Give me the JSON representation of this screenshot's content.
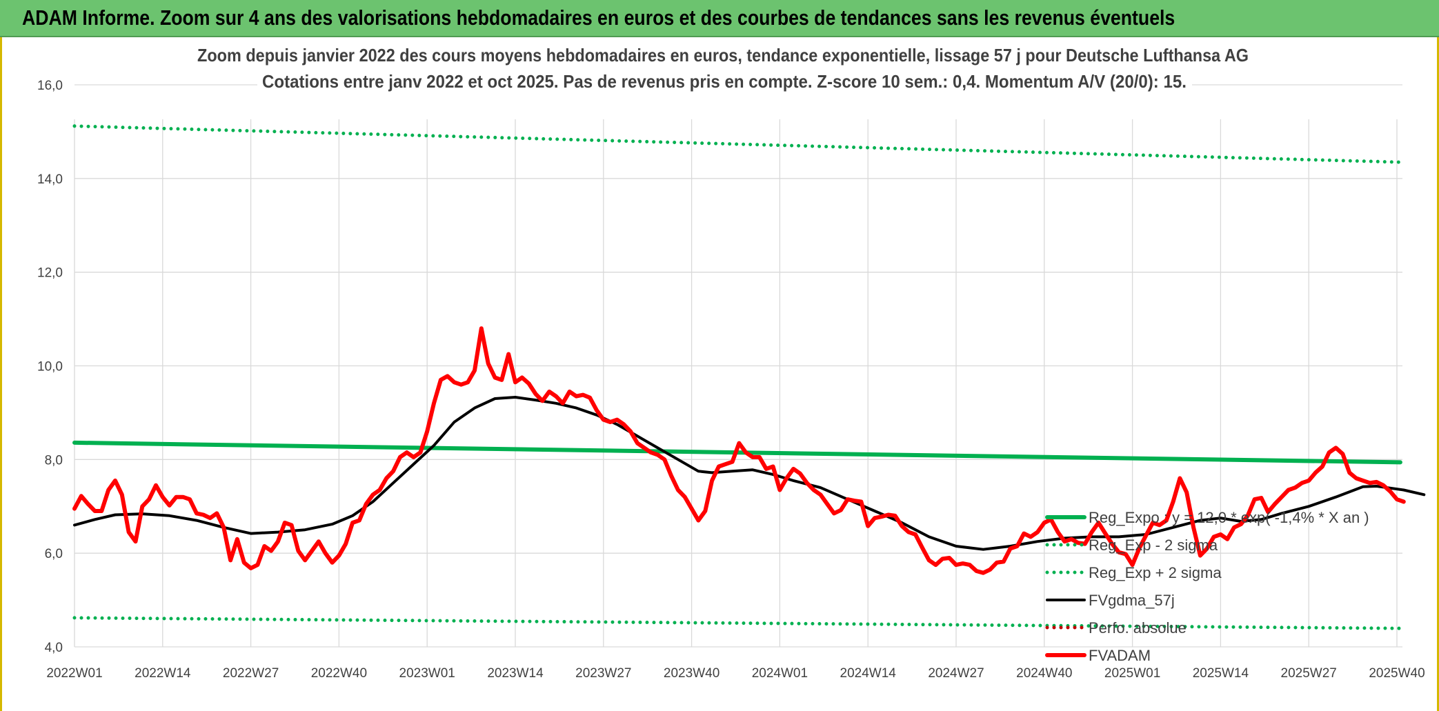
{
  "header": {
    "title": "ADAM Informe. Zoom sur 4 ans des valorisations hebdomadaires en euros et des courbes de tendances sans les revenus éventuels"
  },
  "colors": {
    "banner": "#6cc36f",
    "grid": "#d9d9d9",
    "axis_text": "#404040",
    "title_text": "#404040",
    "reg_expo": "#00b050",
    "sigma": "#00b050",
    "fvgdma": "#000000",
    "perfo": "#c00000",
    "fvadam": "#ff0000"
  },
  "chart_data": {
    "type": "line",
    "title": "Zoom depuis janvier 2022 des cours moyens hebdomadaires en euros, tendance exponentielle, lissage 57 j pour Deutsche Lufthansa AG",
    "subtitle": "Cotations entre janv 2022 et oct 2025. Pas de revenus pris en compte. Z-score 10 sem.: 0,4. Momentum A/V (20/0): 15.",
    "xlabel": "",
    "ylabel": "",
    "ylim": [
      4,
      16
    ],
    "yticks": [
      "4,0",
      "6,0",
      "8,0",
      "10,0",
      "12,0",
      "14,0",
      "16,0"
    ],
    "xlim": [
      0,
      195
    ],
    "xticks": [
      {
        "i": 0,
        "label": "2022W01"
      },
      {
        "i": 13,
        "label": "2022W14"
      },
      {
        "i": 26,
        "label": "2022W27"
      },
      {
        "i": 39,
        "label": "2022W40"
      },
      {
        "i": 52,
        "label": "2023W01"
      },
      {
        "i": 65,
        "label": "2023W14"
      },
      {
        "i": 78,
        "label": "2023W27"
      },
      {
        "i": 91,
        "label": "2023W40"
      },
      {
        "i": 104,
        "label": "2024W01"
      },
      {
        "i": 117,
        "label": "2024W14"
      },
      {
        "i": 130,
        "label": "2024W27"
      },
      {
        "i": 143,
        "label": "2024W40"
      },
      {
        "i": 156,
        "label": "2025W01"
      },
      {
        "i": 169,
        "label": "2025W14"
      },
      {
        "i": 182,
        "label": "2025W27"
      },
      {
        "i": 195,
        "label": "2025W40"
      }
    ],
    "grid": true,
    "legend_position": "bottom-right",
    "series": [
      {
        "name": "Reg_Expo : y = 12,0 * exp( -1,4% * X an )",
        "style": "solid-thick",
        "linear": [
          [
            0,
            8.36
          ],
          [
            200,
            7.93
          ]
        ]
      },
      {
        "name": "Reg_Exp - 2 sigma",
        "style": "dotted",
        "linear": [
          [
            0,
            4.62
          ],
          [
            200,
            4.39
          ]
        ]
      },
      {
        "name": "Reg_Exp + 2 sigma",
        "style": "dotted",
        "linear": [
          [
            0,
            15.12
          ],
          [
            200,
            14.33
          ]
        ]
      },
      {
        "name": "FVgdma_57j",
        "style": "solid",
        "points": [
          [
            0,
            6.6
          ],
          [
            3,
            6.72
          ],
          [
            6,
            6.82
          ],
          [
            10,
            6.84
          ],
          [
            14,
            6.8
          ],
          [
            18,
            6.7
          ],
          [
            22,
            6.55
          ],
          [
            26,
            6.42
          ],
          [
            30,
            6.45
          ],
          [
            34,
            6.5
          ],
          [
            38,
            6.62
          ],
          [
            41,
            6.8
          ],
          [
            44,
            7.1
          ],
          [
            47,
            7.5
          ],
          [
            50,
            7.9
          ],
          [
            53,
            8.3
          ],
          [
            56,
            8.8
          ],
          [
            59,
            9.1
          ],
          [
            62,
            9.3
          ],
          [
            65,
            9.33
          ],
          [
            68,
            9.27
          ],
          [
            71,
            9.2
          ],
          [
            74,
            9.1
          ],
          [
            77,
            8.95
          ],
          [
            80,
            8.75
          ],
          [
            83,
            8.5
          ],
          [
            86,
            8.25
          ],
          [
            89,
            8.0
          ],
          [
            92,
            7.75
          ],
          [
            94,
            7.72
          ],
          [
            97,
            7.75
          ],
          [
            100,
            7.78
          ],
          [
            103,
            7.68
          ],
          [
            106,
            7.55
          ],
          [
            110,
            7.4
          ],
          [
            114,
            7.15
          ],
          [
            118,
            6.9
          ],
          [
            122,
            6.65
          ],
          [
            126,
            6.35
          ],
          [
            130,
            6.15
          ],
          [
            134,
            6.08
          ],
          [
            138,
            6.15
          ],
          [
            142,
            6.25
          ],
          [
            146,
            6.32
          ],
          [
            150,
            6.35
          ],
          [
            154,
            6.35
          ],
          [
            158,
            6.4
          ],
          [
            162,
            6.55
          ],
          [
            166,
            6.7
          ],
          [
            169,
            6.75
          ],
          [
            172,
            6.68
          ],
          [
            175,
            6.72
          ],
          [
            178,
            6.85
          ],
          [
            182,
            7.0
          ],
          [
            186,
            7.2
          ],
          [
            190,
            7.42
          ],
          [
            192,
            7.43
          ],
          [
            196,
            7.35
          ],
          [
            199,
            7.25
          ]
        ]
      },
      {
        "name": "Perfo. absolue",
        "style": "dotted",
        "points": []
      },
      {
        "name": "FVADAM",
        "style": "solid-thick",
        "points": [
          [
            0,
            6.95
          ],
          [
            1,
            7.22
          ],
          [
            2,
            7.05
          ],
          [
            3,
            6.9
          ],
          [
            4,
            6.9
          ],
          [
            5,
            7.35
          ],
          [
            6,
            7.55
          ],
          [
            7,
            7.25
          ],
          [
            8,
            6.45
          ],
          [
            9,
            6.25
          ],
          [
            10,
            7.0
          ],
          [
            11,
            7.15
          ],
          [
            12,
            7.45
          ],
          [
            13,
            7.2
          ],
          [
            14,
            7.02
          ],
          [
            15,
            7.2
          ],
          [
            16,
            7.2
          ],
          [
            17,
            7.15
          ],
          [
            18,
            6.85
          ],
          [
            19,
            6.82
          ],
          [
            20,
            6.75
          ],
          [
            21,
            6.85
          ],
          [
            22,
            6.55
          ],
          [
            23,
            5.85
          ],
          [
            24,
            6.3
          ],
          [
            25,
            5.8
          ],
          [
            26,
            5.68
          ],
          [
            27,
            5.75
          ],
          [
            28,
            6.15
          ],
          [
            29,
            6.05
          ],
          [
            30,
            6.25
          ],
          [
            31,
            6.65
          ],
          [
            32,
            6.6
          ],
          [
            33,
            6.05
          ],
          [
            34,
            5.85
          ],
          [
            35,
            6.05
          ],
          [
            36,
            6.25
          ],
          [
            37,
            6.0
          ],
          [
            38,
            5.8
          ],
          [
            39,
            5.95
          ],
          [
            40,
            6.2
          ],
          [
            41,
            6.65
          ],
          [
            42,
            6.7
          ],
          [
            43,
            7.05
          ],
          [
            44,
            7.25
          ],
          [
            45,
            7.35
          ],
          [
            46,
            7.6
          ],
          [
            47,
            7.75
          ],
          [
            48,
            8.05
          ],
          [
            49,
            8.15
          ],
          [
            50,
            8.05
          ],
          [
            51,
            8.15
          ],
          [
            52,
            8.6
          ],
          [
            53,
            9.2
          ],
          [
            54,
            9.7
          ],
          [
            55,
            9.78
          ],
          [
            56,
            9.65
          ],
          [
            57,
            9.6
          ],
          [
            58,
            9.65
          ],
          [
            59,
            9.9
          ],
          [
            60,
            10.8
          ],
          [
            61,
            10.05
          ],
          [
            62,
            9.75
          ],
          [
            63,
            9.7
          ],
          [
            64,
            10.25
          ],
          [
            65,
            9.65
          ],
          [
            66,
            9.75
          ],
          [
            67,
            9.62
          ],
          [
            68,
            9.4
          ],
          [
            69,
            9.25
          ],
          [
            70,
            9.45
          ],
          [
            71,
            9.35
          ],
          [
            72,
            9.2
          ],
          [
            73,
            9.45
          ],
          [
            74,
            9.35
          ],
          [
            75,
            9.38
          ],
          [
            76,
            9.32
          ],
          [
            77,
            9.05
          ],
          [
            78,
            8.85
          ],
          [
            79,
            8.8
          ],
          [
            80,
            8.85
          ],
          [
            81,
            8.75
          ],
          [
            82,
            8.6
          ],
          [
            83,
            8.35
          ],
          [
            84,
            8.25
          ],
          [
            85,
            8.15
          ],
          [
            86,
            8.1
          ],
          [
            87,
            8.0
          ],
          [
            88,
            7.65
          ],
          [
            89,
            7.35
          ],
          [
            90,
            7.2
          ],
          [
            91,
            6.95
          ],
          [
            92,
            6.7
          ],
          [
            93,
            6.9
          ],
          [
            94,
            7.55
          ],
          [
            95,
            7.85
          ],
          [
            96,
            7.9
          ],
          [
            97,
            7.95
          ],
          [
            98,
            8.35
          ],
          [
            99,
            8.15
          ],
          [
            100,
            8.05
          ],
          [
            101,
            8.05
          ],
          [
            102,
            7.8
          ],
          [
            103,
            7.85
          ],
          [
            104,
            7.35
          ],
          [
            105,
            7.6
          ],
          [
            106,
            7.8
          ],
          [
            107,
            7.7
          ],
          [
            108,
            7.5
          ],
          [
            109,
            7.35
          ],
          [
            110,
            7.25
          ],
          [
            111,
            7.05
          ],
          [
            112,
            6.85
          ],
          [
            113,
            6.92
          ],
          [
            114,
            7.15
          ],
          [
            115,
            7.12
          ],
          [
            116,
            7.1
          ],
          [
            117,
            6.58
          ],
          [
            118,
            6.75
          ],
          [
            119,
            6.78
          ],
          [
            120,
            6.82
          ],
          [
            121,
            6.8
          ],
          [
            122,
            6.58
          ],
          [
            123,
            6.45
          ],
          [
            124,
            6.4
          ],
          [
            125,
            6.12
          ],
          [
            126,
            5.85
          ],
          [
            127,
            5.75
          ],
          [
            128,
            5.88
          ],
          [
            129,
            5.9
          ],
          [
            130,
            5.75
          ],
          [
            131,
            5.78
          ],
          [
            132,
            5.75
          ],
          [
            133,
            5.62
          ],
          [
            134,
            5.58
          ],
          [
            135,
            5.65
          ],
          [
            136,
            5.8
          ],
          [
            137,
            5.82
          ],
          [
            138,
            6.1
          ],
          [
            139,
            6.15
          ],
          [
            140,
            6.42
          ],
          [
            141,
            6.35
          ],
          [
            142,
            6.45
          ],
          [
            143,
            6.65
          ],
          [
            144,
            6.72
          ],
          [
            145,
            6.45
          ],
          [
            146,
            6.25
          ],
          [
            147,
            6.3
          ],
          [
            148,
            6.22
          ],
          [
            149,
            6.2
          ],
          [
            150,
            6.45
          ],
          [
            151,
            6.65
          ],
          [
            152,
            6.42
          ],
          [
            153,
            6.2
          ],
          [
            154,
            6.02
          ],
          [
            155,
            5.98
          ],
          [
            156,
            5.75
          ],
          [
            157,
            6.1
          ],
          [
            158,
            6.38
          ],
          [
            159,
            6.65
          ],
          [
            160,
            6.6
          ],
          [
            161,
            6.7
          ],
          [
            162,
            7.1
          ],
          [
            163,
            7.6
          ],
          [
            164,
            7.3
          ],
          [
            165,
            6.55
          ],
          [
            166,
            5.95
          ],
          [
            167,
            6.1
          ],
          [
            168,
            6.35
          ],
          [
            169,
            6.4
          ],
          [
            170,
            6.3
          ],
          [
            171,
            6.55
          ],
          [
            172,
            6.62
          ],
          [
            173,
            6.8
          ],
          [
            174,
            7.15
          ],
          [
            175,
            7.18
          ],
          [
            176,
            6.88
          ],
          [
            177,
            7.05
          ],
          [
            178,
            7.2
          ],
          [
            179,
            7.35
          ],
          [
            180,
            7.4
          ],
          [
            181,
            7.5
          ],
          [
            182,
            7.55
          ],
          [
            183,
            7.72
          ],
          [
            184,
            7.85
          ],
          [
            185,
            8.15
          ],
          [
            186,
            8.25
          ],
          [
            187,
            8.12
          ],
          [
            188,
            7.72
          ],
          [
            189,
            7.6
          ],
          [
            190,
            7.55
          ],
          [
            191,
            7.5
          ],
          [
            192,
            7.52
          ],
          [
            193,
            7.45
          ],
          [
            194,
            7.32
          ],
          [
            195,
            7.15
          ],
          [
            196,
            7.1
          ]
        ]
      }
    ]
  }
}
